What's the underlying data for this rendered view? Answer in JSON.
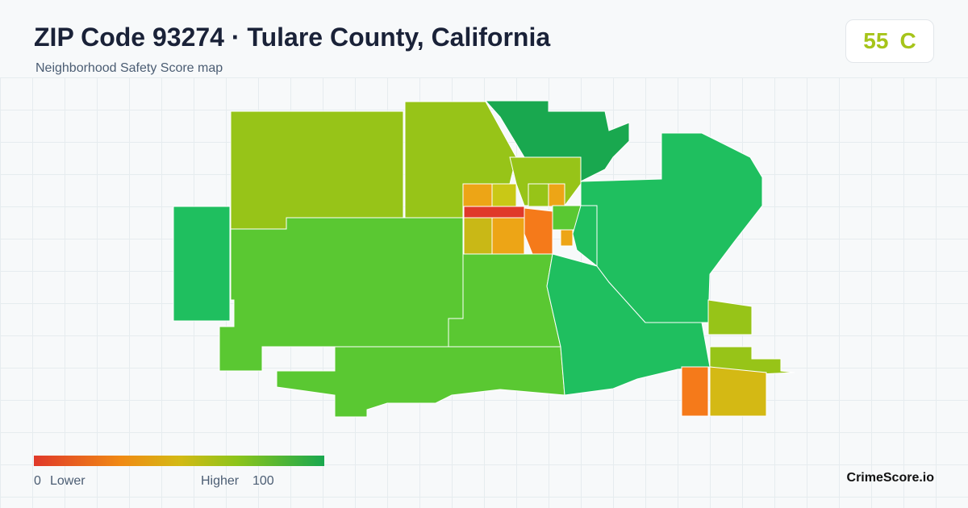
{
  "header": {
    "title": "ZIP Code 93274 · Tulare County, California",
    "subtitle": "Neighborhood Safety Score map"
  },
  "score": {
    "value": 55,
    "grade": "C"
  },
  "legend": {
    "min": 0,
    "min_label": "Lower",
    "max_label": "Higher",
    "max": 100
  },
  "brand": "CrimeScore.io"
}
